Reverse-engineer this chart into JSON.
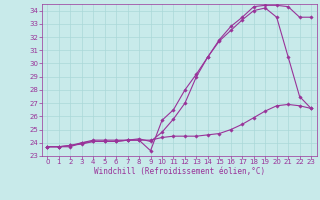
{
  "title": "",
  "xlabel": "Windchill (Refroidissement éolien,°C)",
  "bg_color": "#c8eaea",
  "line_color": "#993399",
  "grid_color": "#aad8d8",
  "xlim": [
    -0.5,
    23.5
  ],
  "ylim": [
    23,
    34.5
  ],
  "xticks": [
    0,
    1,
    2,
    3,
    4,
    5,
    6,
    7,
    8,
    9,
    10,
    11,
    12,
    13,
    14,
    15,
    16,
    17,
    18,
    19,
    20,
    21,
    22,
    23
  ],
  "yticks": [
    23,
    24,
    25,
    26,
    27,
    28,
    29,
    30,
    31,
    32,
    33,
    34
  ],
  "line1_x": [
    0,
    1,
    2,
    3,
    4,
    5,
    6,
    7,
    8,
    9,
    10,
    11,
    12,
    13,
    14,
    15,
    16,
    17,
    18,
    19,
    20,
    21,
    22,
    23
  ],
  "line1_y": [
    23.7,
    23.7,
    23.7,
    24.0,
    24.1,
    24.1,
    24.1,
    24.2,
    24.2,
    24.2,
    24.4,
    24.5,
    24.5,
    24.5,
    24.6,
    24.7,
    25.0,
    25.4,
    25.9,
    26.4,
    26.8,
    26.9,
    26.8,
    26.6
  ],
  "line2_x": [
    0,
    1,
    2,
    3,
    4,
    5,
    6,
    7,
    8,
    9,
    10,
    11,
    12,
    13,
    14,
    15,
    16,
    17,
    18,
    19,
    20,
    21,
    22,
    23
  ],
  "line2_y": [
    23.7,
    23.7,
    23.8,
    23.9,
    24.1,
    24.1,
    24.1,
    24.2,
    24.2,
    23.4,
    25.7,
    26.5,
    28.0,
    29.2,
    30.5,
    31.7,
    32.5,
    33.3,
    34.0,
    34.2,
    33.5,
    30.5,
    27.5,
    26.6
  ],
  "line3_x": [
    0,
    1,
    2,
    3,
    4,
    5,
    6,
    7,
    8,
    9,
    10,
    11,
    12,
    13,
    14,
    15,
    16,
    17,
    18,
    19,
    20,
    21,
    22,
    23
  ],
  "line3_y": [
    23.7,
    23.7,
    23.8,
    24.0,
    24.2,
    24.2,
    24.2,
    24.2,
    24.3,
    24.1,
    24.8,
    25.8,
    27.0,
    29.0,
    30.5,
    31.8,
    32.8,
    33.5,
    34.3,
    34.4,
    34.4,
    34.3,
    33.5,
    33.5
  ],
  "marker": "D",
  "markersize": 1.8,
  "linewidth": 0.8,
  "tick_fontsize": 5.0,
  "xlabel_fontsize": 5.5
}
